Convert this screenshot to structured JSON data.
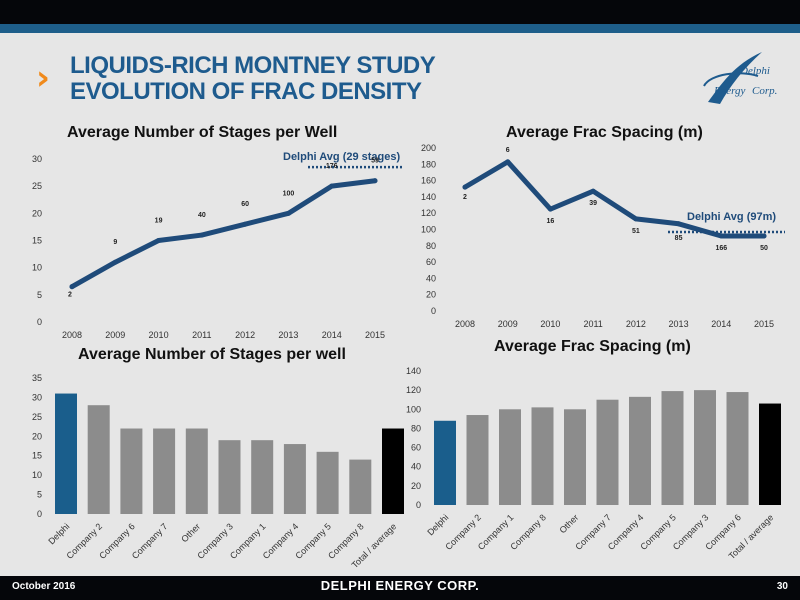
{
  "slide": {
    "title_line1": "LIQUIDS-RICH MONTNEY STUDY",
    "title_line2": "EVOLUTION OF FRAC DENSITY",
    "chevron": "›",
    "logo_text1": "Delphi",
    "logo_text2": "Energy",
    "logo_text3": "Corp.",
    "footer_date": "October 2016",
    "footer_brand": "DELPHI ENERGY CORP.",
    "page_number": "30"
  },
  "colors": {
    "accent": "#1e5b8e",
    "line": "#1f4b7a",
    "bar_gray": "#8c8c8c",
    "bar_delphi": "#1a5e8c",
    "bar_total": "#000000",
    "chevron": "#f08a1c"
  },
  "chart_data": [
    {
      "type": "line",
      "title": "Average Number of Stages per Well",
      "x": [
        "2008",
        "2009",
        "2010",
        "2011",
        "2012",
        "2013",
        "2014",
        "2015"
      ],
      "values": [
        6.5,
        11,
        15,
        16,
        18,
        20,
        25,
        26
      ],
      "point_labels": [
        "2",
        "9",
        "19",
        "40",
        "60",
        "100",
        "176",
        "59"
      ],
      "ylim": [
        0,
        30
      ],
      "yticks": [
        0,
        5,
        10,
        15,
        20,
        25,
        30
      ],
      "reference": {
        "label": "Delphi Avg (29 stages)",
        "value": 28.5
      }
    },
    {
      "type": "line",
      "title": "Average Frac Spacing (m)",
      "x": [
        "2008",
        "2009",
        "2010",
        "2011",
        "2012",
        "2013",
        "2014",
        "2015"
      ],
      "values": [
        152,
        183,
        125,
        147,
        113,
        107,
        92,
        92
      ],
      "point_labels": [
        "2",
        "6",
        "16",
        "39",
        "51",
        "85",
        "166",
        "50"
      ],
      "ylim": [
        0,
        200
      ],
      "yticks": [
        0,
        20,
        40,
        60,
        80,
        100,
        120,
        140,
        160,
        180,
        200
      ],
      "reference": {
        "label": "Delphi Avg (97m)",
        "value": 97
      }
    },
    {
      "type": "bar",
      "title": "Average Number of Stages per well",
      "categories": [
        "Delphi",
        "Company 2",
        "Company 6",
        "Company 7",
        "Other",
        "Company 3",
        "Company 1",
        "Company 4",
        "Company 5",
        "Company 8",
        "Total / average"
      ],
      "values": [
        31,
        28,
        22,
        22,
        22,
        19,
        19,
        18,
        16,
        14,
        22
      ],
      "ylim": [
        0,
        35
      ],
      "yticks": [
        0,
        5,
        10,
        15,
        20,
        25,
        30,
        35
      ]
    },
    {
      "type": "bar",
      "title": "Average Frac Spacing (m)",
      "categories": [
        "Delphi",
        "Company 2",
        "Company 1",
        "Company 8",
        "Other",
        "Company 7",
        "Company 4",
        "Company 5",
        "Company 3",
        "Company 6",
        "Total / average"
      ],
      "values": [
        88,
        94,
        100,
        102,
        100,
        110,
        113,
        119,
        120,
        118,
        106
      ],
      "ylim": [
        0,
        140
      ],
      "yticks": [
        0,
        20,
        40,
        60,
        80,
        100,
        120,
        140
      ]
    }
  ]
}
